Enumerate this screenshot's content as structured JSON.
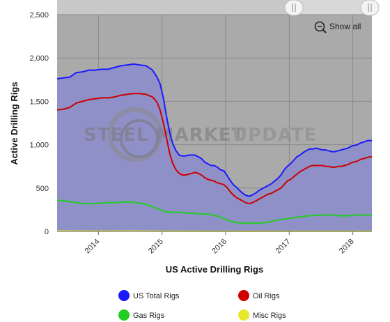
{
  "zoom": {
    "show_all_label": "Show all"
  },
  "watermark": {
    "line1": "STEEL MARKET",
    "line2": "UPDATE"
  },
  "colors": {
    "plot_bg": "#aaaaaa",
    "navigator_bg": "#d8d8d8",
    "area_fill": "#9090c8",
    "us_total": "#1a1aff",
    "oil": "#cc0000",
    "gas": "#22cc22",
    "misc": "#e6e62a"
  },
  "chart_data": {
    "type": "line",
    "xlabel": "US Active Drilling Rigs",
    "ylabel": "Active Drilling Rigs",
    "xlim": [
      2013.35,
      2018.3
    ],
    "ylim": [
      0,
      2500
    ],
    "x_ticks": [
      2014,
      2015,
      2016,
      2017,
      2018
    ],
    "x_tick_labels": [
      "2014",
      "2015",
      "2016",
      "2017",
      "2018"
    ],
    "y_ticks": [
      0,
      500,
      1000,
      1500,
      2000,
      2500
    ],
    "y_tick_labels": [
      "0",
      "500",
      "1,000",
      "1,500",
      "2,000",
      "2,500"
    ],
    "grid": true,
    "legend_position": "bottom",
    "series": [
      {
        "name": "US Total Rigs",
        "x": [
          2013.35,
          2013.45,
          2013.55,
          2013.65,
          2013.75,
          2013.85,
          2013.95,
          2014.05,
          2014.15,
          2014.25,
          2014.35,
          2014.45,
          2014.55,
          2014.65,
          2014.75,
          2014.85,
          2014.92,
          2014.97,
          2015.02,
          2015.07,
          2015.12,
          2015.17,
          2015.22,
          2015.27,
          2015.32,
          2015.37,
          2015.42,
          2015.47,
          2015.52,
          2015.57,
          2015.62,
          2015.67,
          2015.72,
          2015.77,
          2015.82,
          2015.87,
          2015.92,
          2015.97,
          2016.02,
          2016.07,
          2016.12,
          2016.17,
          2016.22,
          2016.27,
          2016.32,
          2016.37,
          2016.42,
          2016.47,
          2016.52,
          2016.57,
          2016.62,
          2016.67,
          2016.72,
          2016.77,
          2016.82,
          2016.87,
          2016.92,
          2016.97,
          2017.02,
          2017.07,
          2017.12,
          2017.17,
          2017.22,
          2017.27,
          2017.32,
          2017.37,
          2017.42,
          2017.47,
          2017.52,
          2017.57,
          2017.62,
          2017.67,
          2017.72,
          2017.77,
          2017.82,
          2017.87,
          2017.92,
          2017.97,
          2018.02,
          2018.07,
          2018.12,
          2018.17,
          2018.22,
          2018.27,
          2018.3
        ],
        "values": [
          1760,
          1770,
          1780,
          1830,
          1840,
          1860,
          1860,
          1870,
          1870,
          1890,
          1910,
          1920,
          1930,
          1920,
          1910,
          1860,
          1780,
          1700,
          1540,
          1330,
          1140,
          1010,
          930,
          880,
          870,
          870,
          880,
          880,
          880,
          860,
          840,
          800,
          780,
          760,
          760,
          740,
          710,
          700,
          650,
          590,
          540,
          510,
          470,
          440,
          415,
          405,
          420,
          440,
          470,
          490,
          510,
          530,
          550,
          580,
          610,
          650,
          710,
          750,
          780,
          820,
          860,
          880,
          910,
          930,
          950,
          950,
          960,
          950,
          940,
          940,
          930,
          920,
          920,
          930,
          940,
          950,
          960,
          980,
          990,
          1000,
          1020,
          1030,
          1045,
          1050,
          1045
        ]
      },
      {
        "name": "Oil Rigs",
        "x": [
          2013.35,
          2013.45,
          2013.55,
          2013.65,
          2013.75,
          2013.85,
          2013.95,
          2014.05,
          2014.15,
          2014.25,
          2014.35,
          2014.45,
          2014.55,
          2014.65,
          2014.75,
          2014.85,
          2014.92,
          2014.97,
          2015.02,
          2015.07,
          2015.12,
          2015.17,
          2015.22,
          2015.27,
          2015.32,
          2015.37,
          2015.42,
          2015.47,
          2015.52,
          2015.57,
          2015.62,
          2015.67,
          2015.72,
          2015.77,
          2015.82,
          2015.87,
          2015.92,
          2015.97,
          2016.02,
          2016.07,
          2016.12,
          2016.17,
          2016.22,
          2016.27,
          2016.32,
          2016.37,
          2016.42,
          2016.47,
          2016.52,
          2016.57,
          2016.62,
          2016.67,
          2016.72,
          2016.77,
          2016.82,
          2016.87,
          2016.92,
          2016.97,
          2017.02,
          2017.07,
          2017.12,
          2017.17,
          2017.22,
          2017.27,
          2017.32,
          2017.37,
          2017.42,
          2017.47,
          2017.52,
          2017.57,
          2017.62,
          2017.67,
          2017.72,
          2017.77,
          2017.82,
          2017.87,
          2017.92,
          2017.97,
          2018.02,
          2018.07,
          2018.12,
          2018.17,
          2018.22,
          2018.27,
          2018.3
        ],
        "values": [
          1400,
          1410,
          1430,
          1480,
          1500,
          1520,
          1530,
          1540,
          1540,
          1550,
          1570,
          1580,
          1590,
          1590,
          1580,
          1550,
          1490,
          1400,
          1250,
          1080,
          900,
          780,
          710,
          670,
          650,
          650,
          660,
          670,
          680,
          670,
          650,
          620,
          600,
          590,
          580,
          560,
          550,
          540,
          510,
          460,
          420,
          390,
          370,
          350,
          330,
          320,
          330,
          350,
          370,
          390,
          410,
          430,
          440,
          460,
          480,
          500,
          540,
          580,
          600,
          630,
          660,
          690,
          710,
          730,
          750,
          760,
          760,
          760,
          760,
          750,
          750,
          740,
          740,
          750,
          750,
          760,
          770,
          790,
          800,
          810,
          830,
          840,
          850,
          860,
          860
        ]
      },
      {
        "name": "Gas Rigs",
        "x": [
          2013.35,
          2013.5,
          2013.65,
          2013.8,
          2013.95,
          2014.1,
          2014.25,
          2014.4,
          2014.5,
          2014.6,
          2014.7,
          2014.8,
          2014.9,
          2015.0,
          2015.1,
          2015.2,
          2015.3,
          2015.4,
          2015.5,
          2015.6,
          2015.7,
          2015.8,
          2015.9,
          2016.0,
          2016.1,
          2016.2,
          2016.3,
          2016.4,
          2016.5,
          2016.6,
          2016.7,
          2016.8,
          2016.9,
          2017.0,
          2017.1,
          2017.2,
          2017.3,
          2017.4,
          2017.5,
          2017.6,
          2017.7,
          2017.8,
          2017.9,
          2018.0,
          2018.1,
          2018.2,
          2018.3
        ],
        "values": [
          360,
          350,
          330,
          320,
          320,
          330,
          330,
          340,
          340,
          330,
          320,
          300,
          270,
          240,
          220,
          220,
          220,
          210,
          210,
          200,
          200,
          190,
          170,
          140,
          110,
          100,
          95,
          95,
          95,
          100,
          110,
          130,
          140,
          150,
          160,
          170,
          180,
          185,
          190,
          190,
          185,
          180,
          180,
          185,
          190,
          190,
          185
        ]
      },
      {
        "name": "Misc Rigs",
        "x": [
          2013.35,
          2013.6,
          2013.9,
          2014.2,
          2014.5,
          2014.8,
          2015.1,
          2015.4,
          2015.7,
          2016.0,
          2016.3,
          2016.6,
          2016.9,
          2017.2,
          2017.5,
          2017.8,
          2018.1,
          2018.3
        ],
        "values": [
          5,
          4,
          3,
          3,
          4,
          3,
          2,
          2,
          1,
          1,
          1,
          1,
          1,
          1,
          1,
          1,
          1,
          1
        ]
      }
    ]
  }
}
